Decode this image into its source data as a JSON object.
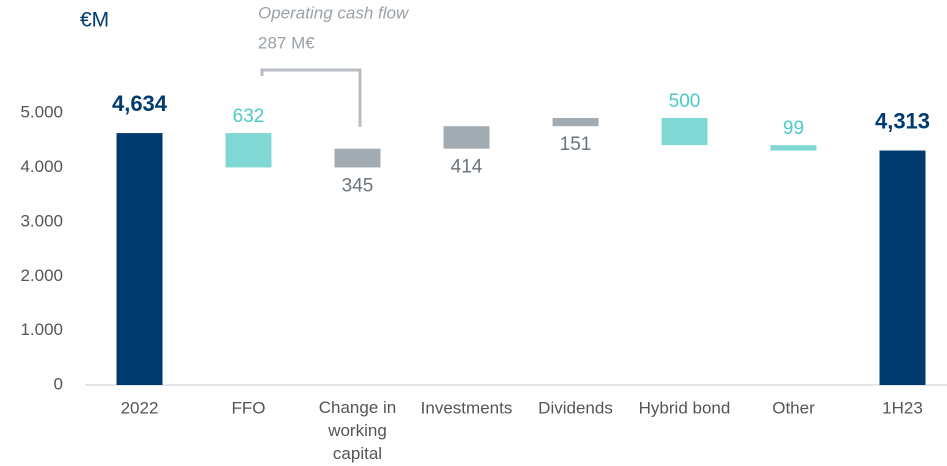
{
  "chart_data": {
    "type": "waterfall",
    "unit_label": "€M",
    "annotation": {
      "title": "Operating cash flow",
      "value_label": "287 M€"
    },
    "categories": [
      "2022",
      "FFO",
      "Change in working capital",
      "Investments",
      "Dividends",
      "Hybrid bond",
      "Other",
      "1H23"
    ],
    "values": [
      4634,
      632,
      345,
      414,
      151,
      500,
      99,
      4313
    ],
    "value_labels": [
      "4,634",
      "632",
      "345",
      "414",
      "151",
      "500",
      "99",
      "4,313"
    ],
    "kinds": [
      "total",
      "decrease",
      "increase",
      "increase",
      "increase",
      "decrease",
      "decrease",
      "total"
    ],
    "colors": {
      "total": "#003b6f",
      "decrease": "#80d8d5",
      "increase": "#a3abb2"
    },
    "ylim": [
      0,
      5500
    ],
    "yticks": [
      0,
      {
        "value": 1000,
        "label": "1.000"
      },
      {
        "value": 2000,
        "label": "2.000"
      },
      {
        "value": 3000,
        "label": "3.000"
      },
      {
        "value": 4000,
        "label": "4.000"
      },
      {
        "value": 5000,
        "label": "5.000"
      }
    ],
    "grid": false
  }
}
